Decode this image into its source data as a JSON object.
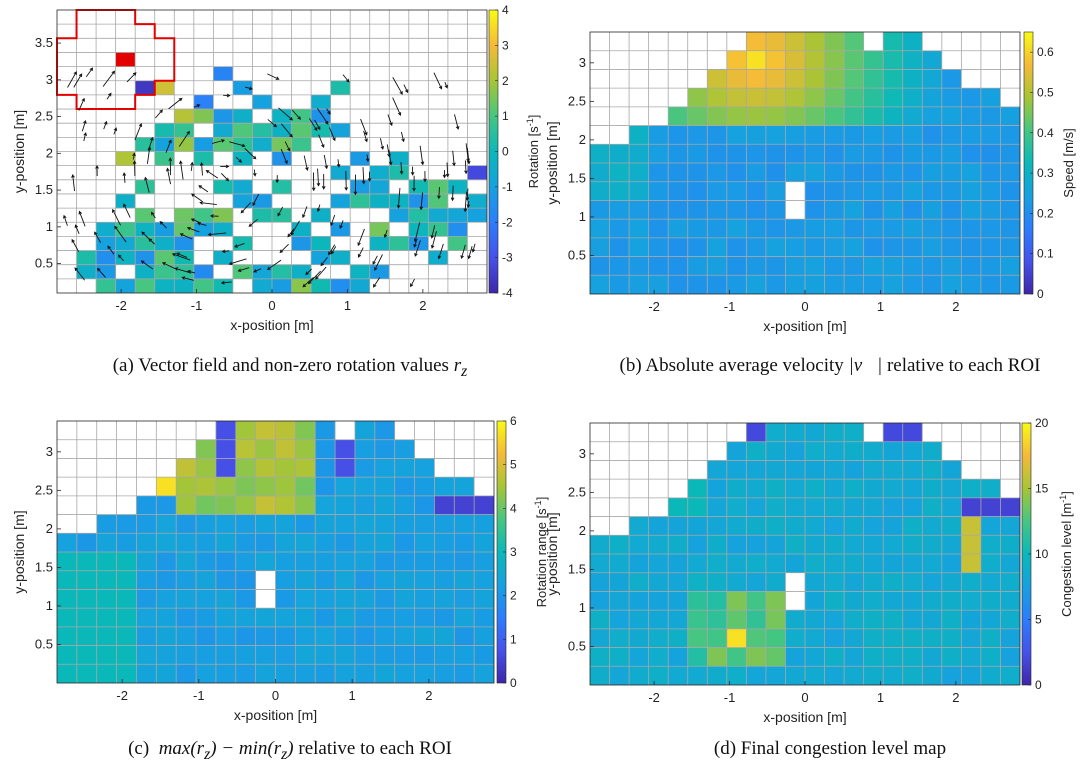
{
  "captions": {
    "a": "(a)  Vector field and non-zero rotation values",
    "a_math": "r",
    "a_sub": "z",
    "b": "(b)  Absolute average velocity",
    "b_math": "|v⃗|",
    "b_tail": "relative to each ROI",
    "c_label": "(c)",
    "c_math": "max(r",
    "c_sub": "z",
    "c_mid": ") − min(r",
    "c_sub2": "z",
    "c_end": ")",
    "c_tail": "relative to each ROI",
    "d": "(d)  Final congestion level map"
  },
  "chart_data": [
    {
      "type": "heatmap",
      "id": "a",
      "title": "",
      "xlabel": "x-position [m]",
      "ylabel": "y-position [m]",
      "xlim": [
        -2.85,
        2.85
      ],
      "ylim": [
        0.1,
        3.95
      ],
      "xticks": [
        -2,
        -1,
        0,
        1,
        2
      ],
      "yticks": [
        0.5,
        1,
        1.5,
        2,
        2.5,
        3,
        3.5
      ],
      "colorbar": {
        "label": "Rotation [s",
        "label_sup": "-1",
        "label_end": "]",
        "min": -4,
        "max": 4,
        "ticks": [
          -4,
          -3,
          -2,
          -1,
          0,
          1,
          2,
          3,
          4
        ]
      },
      "grid": true,
      "overlay": "vector field with red ROI outline"
    },
    {
      "type": "heatmap",
      "id": "b",
      "title": "",
      "xlabel": "x-position [m]",
      "ylabel": "y-position [m]",
      "xlim": [
        -2.85,
        2.85
      ],
      "ylim": [
        0,
        3.4
      ],
      "xticks": [
        -2,
        -1,
        0,
        1,
        2
      ],
      "yticks": [
        0.5,
        1,
        1.5,
        2,
        2.5,
        3
      ],
      "colorbar": {
        "label": "Speed [m/s]",
        "min": 0,
        "max": 0.65,
        "ticks": [
          0,
          0.1,
          0.2,
          0.3,
          0.4,
          0.5,
          0.6
        ]
      },
      "grid": true
    },
    {
      "type": "heatmap",
      "id": "c",
      "title": "",
      "xlabel": "x-position [m]",
      "ylabel": "y-position [m]",
      "xlim": [
        -2.85,
        2.85
      ],
      "ylim": [
        0,
        3.4
      ],
      "xticks": [
        -2,
        -1,
        0,
        1,
        2
      ],
      "yticks": [
        0.5,
        1,
        1.5,
        2,
        2.5,
        3
      ],
      "colorbar": {
        "label": "Rotation range [s",
        "label_sup": "-1",
        "label_end": "]",
        "min": 0,
        "max": 6,
        "ticks": [
          0,
          1,
          2,
          3,
          4,
          5,
          6
        ]
      },
      "grid": true
    },
    {
      "type": "heatmap",
      "id": "d",
      "title": "",
      "xlabel": "x-position [m]",
      "ylabel": "y-position [m]",
      "xlim": [
        -2.85,
        2.85
      ],
      "ylim": [
        0,
        3.4
      ],
      "xticks": [
        -2,
        -1,
        0,
        1,
        2
      ],
      "yticks": [
        0.5,
        1,
        1.5,
        2,
        2.5,
        3
      ],
      "colorbar": {
        "label": "Congestion level [m",
        "label_sup": "-1",
        "label_end": "]",
        "min": 0,
        "max": 20,
        "ticks": [
          0,
          5,
          10,
          15,
          20
        ]
      },
      "grid": true
    }
  ]
}
